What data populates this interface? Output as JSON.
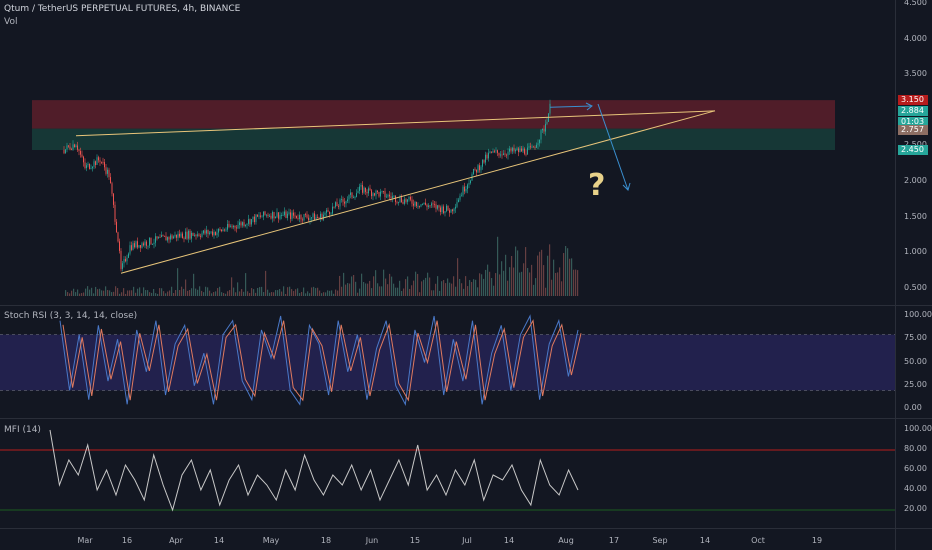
{
  "header": {
    "symbol": "Qtum / TetherUS PERPETUAL FUTURES, 4h, BINANCE",
    "volume_label": "Vol"
  },
  "annotation": {
    "question": "?"
  },
  "colors": {
    "background": "#131722",
    "resistance_zone": "#5c1f2a",
    "support_zone": "#173d3a",
    "trendline": "#e8c57a",
    "arrow": "#3a8fd0",
    "rsi_k": "#4a78c8",
    "rsi_d": "#e07a5f",
    "mfi": "#c8c8c8",
    "mfi_upper": "#b71c1c",
    "mfi_lower": "#1b5e20"
  },
  "chart_data": [
    {
      "type": "candlestick",
      "title": "Qtum / TetherUS PERPETUAL FUTURES, 4h, BINANCE",
      "x": [
        "Mar",
        "16",
        "Apr",
        "14",
        "May",
        "18",
        "Jun",
        "15",
        "Jul",
        "14",
        "Aug",
        "17",
        "Sep",
        "14",
        "Oct",
        "19"
      ],
      "y_ticks": [
        "4.500",
        "4.000",
        "3.500",
        "3.000",
        "2.500",
        "2.000",
        "1.500",
        "1.000",
        "0.500"
      ],
      "ylim": [
        0.4,
        4.5
      ],
      "price_path": [
        {
          "date": "Feb 22",
          "price": 2.45
        },
        {
          "date": "Feb 26",
          "price": 2.55
        },
        {
          "date": "Mar 1",
          "price": 2.2
        },
        {
          "date": "Mar 6",
          "price": 2.32
        },
        {
          "date": "Mar 9",
          "price": 2.1
        },
        {
          "date": "Mar 12",
          "price": 1.2
        },
        {
          "date": "Mar 13",
          "price": 0.75
        },
        {
          "date": "Mar 16",
          "price": 1.1
        },
        {
          "date": "Apr 1",
          "price": 1.25
        },
        {
          "date": "Apr 14",
          "price": 1.3
        },
        {
          "date": "May 1",
          "price": 1.55
        },
        {
          "date": "May 18",
          "price": 1.5
        },
        {
          "date": "Jun 1",
          "price": 1.9
        },
        {
          "date": "Jun 15",
          "price": 1.75
        },
        {
          "date": "Jul 1",
          "price": 1.6
        },
        {
          "date": "Jul 8",
          "price": 2.1
        },
        {
          "date": "Jul 14",
          "price": 2.4
        },
        {
          "date": "Jul 28",
          "price": 2.45
        },
        {
          "date": "Aug 1",
          "price": 2.75
        },
        {
          "date": "Aug 3",
          "price": 3.05
        }
      ],
      "price_badges": [
        {
          "label": "3.150",
          "color": "#b71c1c"
        },
        {
          "label": "2.884",
          "color": "#26a69a"
        },
        {
          "label": "01:03",
          "color": "#26a69a"
        },
        {
          "label": "2.757",
          "color": "#8d6e63"
        },
        {
          "label": "2.450",
          "color": "#26a69a"
        }
      ],
      "zones": [
        {
          "name": "resistance",
          "from": 2.75,
          "to": 3.15
        },
        {
          "name": "support",
          "from": 2.45,
          "to": 2.75
        }
      ],
      "trendlines": [
        {
          "from": {
            "date": "Feb 26",
            "price": 2.65
          },
          "to": {
            "date": "Sep 27",
            "price": 3.0
          }
        },
        {
          "from": {
            "date": "Mar 13",
            "price": 0.72
          },
          "to": {
            "date": "Sep 27",
            "price": 3.0
          }
        }
      ]
    },
    {
      "type": "line",
      "title": "Stoch RSI (3, 3, 14, 14, close)",
      "y_ticks": [
        "100.00",
        "75.00",
        "50.00",
        "25.00",
        "0.00"
      ],
      "ylim": [
        0,
        100
      ],
      "band": [
        20,
        80
      ],
      "series": [
        {
          "values": [
            95,
            20,
            80,
            10,
            90,
            30,
            75,
            5,
            85,
            40,
            95,
            15,
            70,
            90,
            25,
            60,
            5,
            80,
            95,
            30,
            10,
            85,
            55,
            100,
            20,
            5,
            90,
            70,
            15,
            95,
            40,
            80,
            10,
            65,
            95,
            25,
            5,
            85,
            50,
            100,
            15,
            75,
            30,
            95,
            5,
            60,
            90,
            20,
            80,
            100,
            10,
            70,
            95,
            35,
            85
          ]
        }
      ]
    },
    {
      "type": "line",
      "title": "MFI (14)",
      "y_ticks": [
        "100.00",
        "80.00",
        "60.00",
        "40.00",
        "20.00"
      ],
      "ylim": [
        10,
        100
      ],
      "upper": 80,
      "lower": 20,
      "series": [
        {
          "values": [
            100,
            45,
            70,
            55,
            85,
            40,
            60,
            35,
            65,
            50,
            30,
            75,
            45,
            20,
            55,
            70,
            40,
            60,
            25,
            50,
            65,
            35,
            55,
            45,
            30,
            60,
            40,
            75,
            50,
            35,
            55,
            45,
            65,
            40,
            60,
            30,
            50,
            70,
            45,
            85,
            40,
            55,
            35,
            60,
            45,
            70,
            30,
            55,
            50,
            65,
            40,
            25,
            70,
            45,
            35,
            60,
            40
          ]
        }
      ]
    }
  ]
}
